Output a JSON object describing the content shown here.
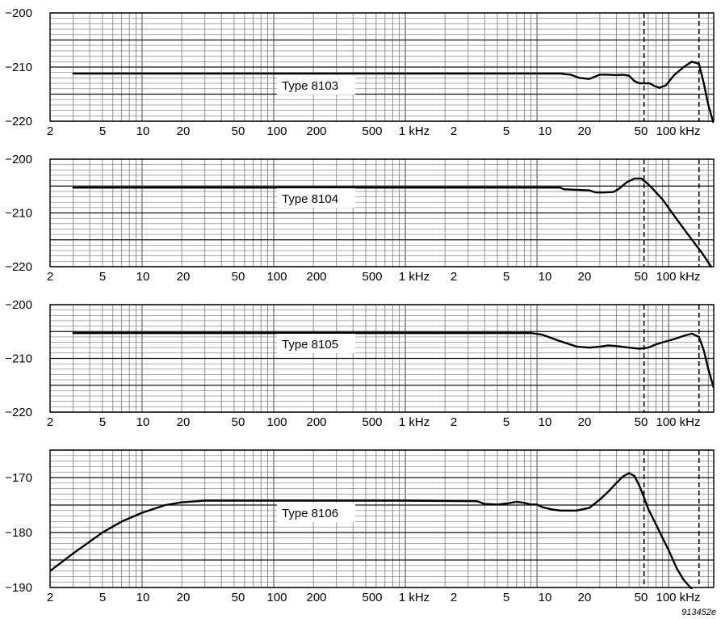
{
  "figure_id": "913452e",
  "chart_data": [
    {
      "type": "line",
      "xscale": "log",
      "xlim": [
        2,
        220000
      ],
      "ylim": [
        -220,
        -200
      ],
      "yticks": [
        -200,
        -210,
        -220
      ],
      "ytick_labels": [
        "−200",
        "−210",
        "−220"
      ],
      "xtick_labels": [
        "2",
        "5",
        "10",
        "20",
        "50",
        "100",
        "200",
        "500",
        "1 kHz",
        "2",
        "5",
        "10",
        "20",
        "50",
        "100 kHz"
      ],
      "annotation": "Type 8103",
      "reference_lines_x": [
        65000,
        170000
      ],
      "series": [
        {
          "x": [
            3,
            15000,
            18000,
            21000,
            25000,
            30000,
            35000,
            40000,
            45000,
            50000,
            55000,
            60000,
            65000,
            72000,
            78000,
            85000,
            95000,
            110000,
            130000,
            150000,
            170000,
            185000,
            200000,
            220000
          ],
          "y": [
            -211.2,
            -211.2,
            -211.4,
            -212.0,
            -212.2,
            -211.4,
            -211.4,
            -211.5,
            -211.4,
            -211.6,
            -212.6,
            -213.0,
            -213.0,
            -213.0,
            -213.5,
            -213.8,
            -213.4,
            -211.5,
            -210.0,
            -209.0,
            -209.4,
            -213.0,
            -217.0,
            -220.5
          ]
        }
      ]
    },
    {
      "type": "line",
      "xscale": "log",
      "xlim": [
        2,
        220000
      ],
      "ylim": [
        -220,
        -200
      ],
      "yticks": [
        -200,
        -210,
        -220
      ],
      "ytick_labels": [
        "−200",
        "−210",
        "−220"
      ],
      "xtick_labels": [
        "2",
        "5",
        "10",
        "20",
        "50",
        "100",
        "200",
        "500",
        "1 kHz",
        "2",
        "5",
        "10",
        "20",
        "50",
        "100 kHz"
      ],
      "annotation": "Type 8104",
      "reference_lines_x": [
        65000,
        170000
      ],
      "series": [
        {
          "x": [
            3,
            15000,
            16000,
            20000,
            25000,
            28000,
            32000,
            38000,
            42000,
            48000,
            55000,
            62000,
            68000,
            75000,
            90000,
            110000,
            140000,
            180000,
            210000
          ],
          "y": [
            -205.3,
            -205.3,
            -205.6,
            -205.7,
            -205.8,
            -206.2,
            -206.2,
            -206.1,
            -205.5,
            -204.3,
            -203.6,
            -203.6,
            -204.4,
            -205.4,
            -207.5,
            -210.5,
            -214.0,
            -217.5,
            -220.0
          ]
        }
      ]
    },
    {
      "type": "line",
      "xscale": "log",
      "xlim": [
        2,
        220000
      ],
      "ylim": [
        -220,
        -200
      ],
      "yticks": [
        -200,
        -210,
        -220
      ],
      "ytick_labels": [
        "−200",
        "−210",
        "−220"
      ],
      "xtick_labels": [
        "2",
        "5",
        "10",
        "20",
        "50",
        "100",
        "200",
        "500",
        "1 kHz",
        "2",
        "5",
        "10",
        "20",
        "50",
        "100 kHz"
      ],
      "annotation": "Type 8105",
      "reference_lines_x": [
        65000,
        170000
      ],
      "series": [
        {
          "x": [
            3,
            9000,
            11000,
            15000,
            20000,
            25000,
            30000,
            35000,
            40000,
            50000,
            60000,
            70000,
            80000,
            90000,
            110000,
            130000,
            150000,
            170000,
            185000,
            200000,
            220000
          ],
          "y": [
            -205.3,
            -205.3,
            -205.6,
            -206.8,
            -207.8,
            -208.0,
            -207.8,
            -207.6,
            -207.7,
            -208.0,
            -208.2,
            -208.0,
            -207.4,
            -207.0,
            -206.4,
            -205.8,
            -205.4,
            -206.0,
            -208.5,
            -212.0,
            -215.5
          ]
        }
      ]
    },
    {
      "type": "line",
      "xscale": "log",
      "xlim": [
        2,
        220000
      ],
      "ylim": [
        -190,
        -165
      ],
      "yticks": [
        -170,
        -180,
        -190
      ],
      "ytick_labels": [
        "−170",
        "−180",
        "−190"
      ],
      "xtick_labels": [
        "2",
        "5",
        "10",
        "20",
        "50",
        "100",
        "200",
        "500",
        "1 kHz",
        "2",
        "5",
        "10",
        "20",
        "50",
        "100 kHz"
      ],
      "annotation": "Type 8106",
      "reference_lines_x": [
        65000,
        170000
      ],
      "series": [
        {
          "x": [
            2,
            3,
            5,
            7,
            10,
            15,
            20,
            30,
            50,
            100,
            1000,
            3500,
            4000,
            5000,
            6000,
            7000,
            8000,
            9000,
            10000,
            11000,
            13000,
            15000,
            20000,
            25000,
            30000,
            35000,
            40000,
            45000,
            50000,
            55000,
            60000,
            65000,
            70000,
            80000,
            90000,
            100000,
            115000,
            130000,
            150000
          ],
          "y": [
            -187.0,
            -183.8,
            -180.0,
            -178.0,
            -176.4,
            -175.0,
            -174.5,
            -174.2,
            -174.2,
            -174.2,
            -174.2,
            -174.3,
            -174.8,
            -174.9,
            -174.7,
            -174.4,
            -174.6,
            -174.9,
            -174.9,
            -175.4,
            -175.8,
            -176.0,
            -176.0,
            -175.5,
            -174.0,
            -172.5,
            -171.0,
            -169.8,
            -169.2,
            -169.7,
            -171.5,
            -173.6,
            -175.7,
            -178.5,
            -181.0,
            -183.2,
            -186.5,
            -188.6,
            -190.3
          ]
        }
      ]
    }
  ]
}
